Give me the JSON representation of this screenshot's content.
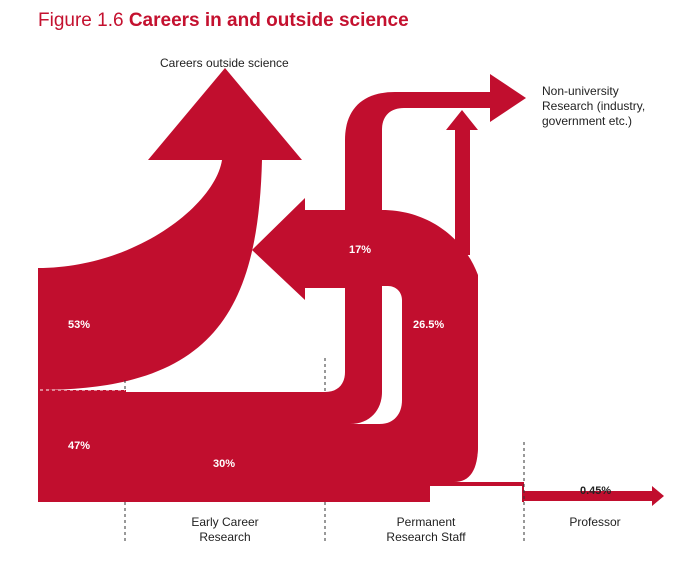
{
  "title": {
    "figure": "Figure 1.6",
    "text": "Careers in and outside science"
  },
  "labels": {
    "outside": "Careers outside science",
    "nonuni_line1": "Non-university",
    "nonuni_line2": "Research (industry,",
    "nonuni_line3": "government etc.)"
  },
  "stages": [
    {
      "line1": "Early Career",
      "line2": "Research"
    },
    {
      "line1": "Permanent",
      "line2": "Research Staff"
    },
    {
      "line1": "Professor",
      "line2": ""
    }
  ],
  "flows": {
    "outside_science": "53%",
    "stay_in_science": "47%",
    "early_to_permanent": "30%",
    "permanent_to_outside": "17%",
    "permanent_to_nonuni": "26.5%",
    "permanent_to_professor": "3.5%",
    "professor_onward": "0.45%"
  },
  "chart_data": {
    "type": "sankey",
    "title": "Careers in and outside science",
    "nodes": [
      "Careers outside science",
      "Non-university Research (industry, government etc.)",
      "Early Career Research",
      "Permanent Research Staff",
      "Professor"
    ],
    "links": [
      {
        "from": "start",
        "to": "Careers outside science",
        "value": 53
      },
      {
        "from": "start",
        "to": "Early Career Research",
        "value": 47
      },
      {
        "from": "Early Career Research",
        "to": "Permanent Research Staff",
        "value": 30
      },
      {
        "from": "Permanent Research Staff",
        "to": "Careers outside science",
        "value": 17
      },
      {
        "from": "Permanent Research Staff",
        "to": "Non-university Research (industry, government etc.)",
        "value": 26.5
      },
      {
        "from": "Permanent Research Staff",
        "to": "Professor",
        "value": 3.5
      },
      {
        "from": "Professor",
        "to": "end",
        "value": 0.45
      }
    ],
    "colors": {
      "flow": "#c10e2e",
      "title": "#c4112f"
    }
  }
}
